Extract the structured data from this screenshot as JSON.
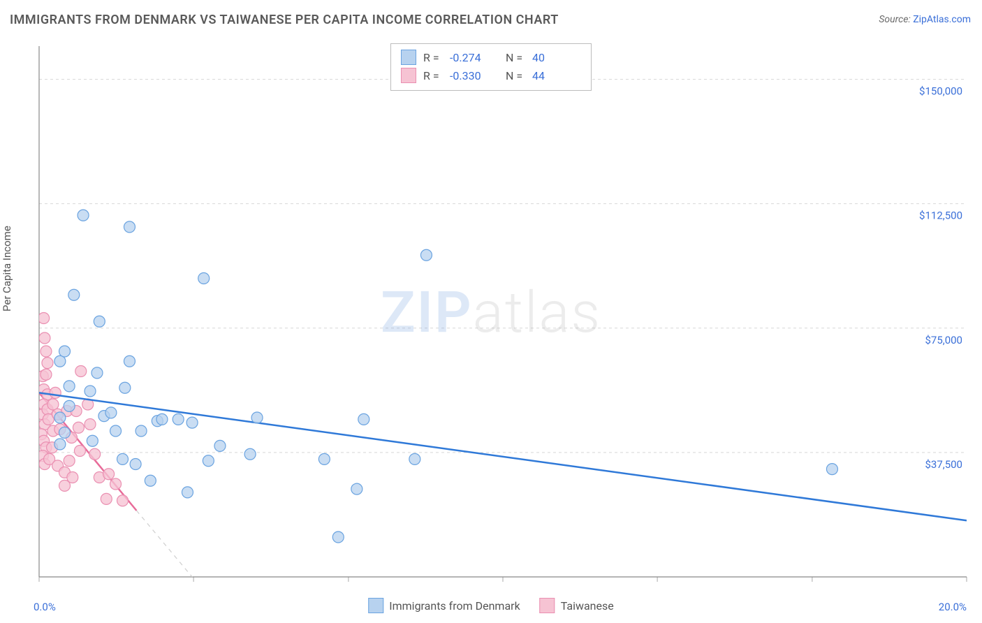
{
  "title": "IMMIGRANTS FROM DENMARK VS TAIWANESE PER CAPITA INCOME CORRELATION CHART",
  "source_label": "Source: ",
  "source_value": "ZipAtlas.com",
  "y_axis_label": "Per Capita Income",
  "watermark_zip": "ZIP",
  "watermark_atlas": "atlas",
  "chart": {
    "type": "scatter",
    "plot_background": "#ffffff",
    "axis_line_color": "#888888",
    "grid_color": "#d8d8d8",
    "tick_color": "#aaaaaa",
    "tick_label_color": "#3a6fd8",
    "tick_label_fontsize": 15,
    "xlim": [
      0,
      20
    ],
    "ylim": [
      0,
      160000
    ],
    "y_ticks": [
      37500,
      75000,
      112500,
      150000
    ],
    "y_tick_labels": [
      "$37,500",
      "$75,000",
      "$112,500",
      "$150,000"
    ],
    "x_tick_positions": [
      0,
      3.33,
      6.67,
      10,
      13.33,
      16.67,
      20
    ],
    "x_min_label": "0.0%",
    "x_max_label": "20.0%",
    "marker_radius": 8,
    "marker_stroke_width": 1.2,
    "trend_line_width": 2.5,
    "series": [
      {
        "name": "Immigrants from Denmark",
        "fill": "#b7d2ef",
        "stroke": "#6aa3e0",
        "fill_opacity": 0.75,
        "R": "-0.274",
        "N": "40",
        "trend": {
          "x1": 0,
          "y1": 55500,
          "x2": 20,
          "y2": 17000,
          "color": "#2f79d8",
          "dash": ""
        },
        "points": [
          [
            0.95,
            109000
          ],
          [
            1.95,
            105500
          ],
          [
            3.55,
            90000
          ],
          [
            8.35,
            97000
          ],
          [
            0.75,
            85000
          ],
          [
            0.45,
            65000
          ],
          [
            0.55,
            68000
          ],
          [
            0.45,
            48000
          ],
          [
            1.3,
            77000
          ],
          [
            1.25,
            61500
          ],
          [
            1.1,
            56000
          ],
          [
            1.95,
            65000
          ],
          [
            1.85,
            57000
          ],
          [
            1.4,
            48500
          ],
          [
            0.65,
            57500
          ],
          [
            0.65,
            51500
          ],
          [
            0.55,
            43500
          ],
          [
            0.45,
            40000
          ],
          [
            1.15,
            41000
          ],
          [
            1.55,
            49500
          ],
          [
            1.65,
            44000
          ],
          [
            1.8,
            35500
          ],
          [
            2.2,
            44000
          ],
          [
            2.08,
            34000
          ],
          [
            2.55,
            47000
          ],
          [
            2.65,
            47500
          ],
          [
            2.4,
            29000
          ],
          [
            3.0,
            47500
          ],
          [
            3.3,
            46500
          ],
          [
            3.2,
            25500
          ],
          [
            3.65,
            35000
          ],
          [
            3.9,
            39500
          ],
          [
            4.55,
            37000
          ],
          [
            4.7,
            48000
          ],
          [
            6.15,
            35500
          ],
          [
            6.45,
            12000
          ],
          [
            6.85,
            26500
          ],
          [
            8.1,
            35500
          ],
          [
            7.0,
            47500
          ],
          [
            17.1,
            32500
          ]
        ]
      },
      {
        "name": "Taiwanese",
        "fill": "#f6c3d3",
        "stroke": "#ea8fb1",
        "fill_opacity": 0.78,
        "R": "-0.330",
        "N": "44",
        "trend": {
          "x1": 0,
          "y1": 55500,
          "x2": 2.1,
          "y2": 20000,
          "color": "#e86b99",
          "dash": "",
          "ext_x2": 4.2,
          "ext_y2": -15000,
          "ext_dash": "6,6",
          "ext_color": "#cfcfcf"
        },
        "points": [
          [
            0.1,
            78000
          ],
          [
            0.12,
            72000
          ],
          [
            0.15,
            68000
          ],
          [
            0.18,
            64500
          ],
          [
            0.08,
            60500
          ],
          [
            0.1,
            56500
          ],
          [
            0.15,
            61000
          ],
          [
            0.18,
            55000
          ],
          [
            0.1,
            52000
          ],
          [
            0.08,
            49000
          ],
          [
            0.12,
            46000
          ],
          [
            0.18,
            50500
          ],
          [
            0.05,
            43000
          ],
          [
            0.1,
            41000
          ],
          [
            0.15,
            39000
          ],
          [
            0.2,
            47500
          ],
          [
            0.08,
            36500
          ],
          [
            0.12,
            34000
          ],
          [
            0.22,
            35500
          ],
          [
            0.3,
            52000
          ],
          [
            0.3,
            44000
          ],
          [
            0.28,
            39000
          ],
          [
            0.35,
            55500
          ],
          [
            0.4,
            49000
          ],
          [
            0.4,
            33500
          ],
          [
            0.45,
            44500
          ],
          [
            0.55,
            31500
          ],
          [
            0.55,
            27500
          ],
          [
            0.6,
            50000
          ],
          [
            0.65,
            35000
          ],
          [
            0.7,
            42000
          ],
          [
            0.72,
            30000
          ],
          [
            0.8,
            50000
          ],
          [
            0.85,
            45000
          ],
          [
            0.88,
            38000
          ],
          [
            0.9,
            62000
          ],
          [
            1.05,
            52000
          ],
          [
            1.1,
            46000
          ],
          [
            1.2,
            37000
          ],
          [
            1.3,
            30000
          ],
          [
            1.45,
            23500
          ],
          [
            1.5,
            31000
          ],
          [
            1.65,
            28000
          ],
          [
            1.8,
            23000
          ]
        ]
      }
    ]
  },
  "legend_top": {
    "R_label": "R =",
    "N_label": "N ="
  },
  "legend_bottom_items": [
    "Immigrants from Denmark",
    "Taiwanese"
  ]
}
